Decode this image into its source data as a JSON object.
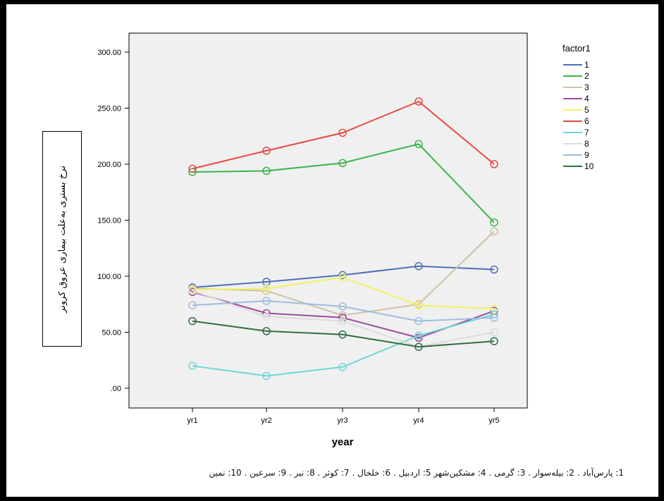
{
  "chart_data": {
    "type": "line",
    "xlabel": "year",
    "ylabel": "نرخ بستری به‌علت بیماری عروق کرونر",
    "categories": [
      "yr1",
      "yr2",
      "yr3",
      "yr4",
      "yr5"
    ],
    "ylim": [
      0,
      300
    ],
    "yticks": [
      ".00",
      "50.00",
      "100.00",
      "150.00",
      "200.00",
      "250.00",
      "300.00"
    ],
    "legend_title": "factor1",
    "legend_position": "right",
    "grid": false,
    "series": [
      {
        "name": "1",
        "color": "#4f6fb8",
        "values": [
          90,
          95,
          101,
          109,
          106
        ]
      },
      {
        "name": "2",
        "color": "#3cb54a",
        "values": [
          193,
          194,
          201,
          218,
          148
        ]
      },
      {
        "name": "3",
        "color": "#cfc2a3",
        "values": [
          89,
          87,
          65,
          75,
          140
        ]
      },
      {
        "name": "4",
        "color": "#9d4a9e",
        "values": [
          86,
          67,
          63,
          45,
          69
        ]
      },
      {
        "name": "5",
        "color": "#f2f266",
        "values": [
          88,
          89,
          99,
          74,
          71
        ]
      },
      {
        "name": "6",
        "color": "#e84a45",
        "values": [
          196,
          212,
          228,
          256,
          200
        ]
      },
      {
        "name": "7",
        "color": "#6fd6d8",
        "values": [
          20,
          11,
          19,
          47,
          66
        ]
      },
      {
        "name": "8",
        "color": "#dcdcdc",
        "values": [
          87,
          64,
          60,
          37,
          50
        ]
      },
      {
        "name": "9",
        "color": "#9fbde0",
        "values": [
          74,
          78,
          73,
          60,
          63
        ]
      },
      {
        "name": "10",
        "color": "#2e6e42",
        "values": [
          60,
          51,
          48,
          37,
          42
        ]
      }
    ]
  },
  "caption": "1: پارس‌آباد . 2: بیله‌سوار . 3: گرمی . 4: مشکین‌شهر 5: اردبیل . 6: خلخال . 7: کوثر . 8: نیر . 9: سرعین . 10: نمین"
}
